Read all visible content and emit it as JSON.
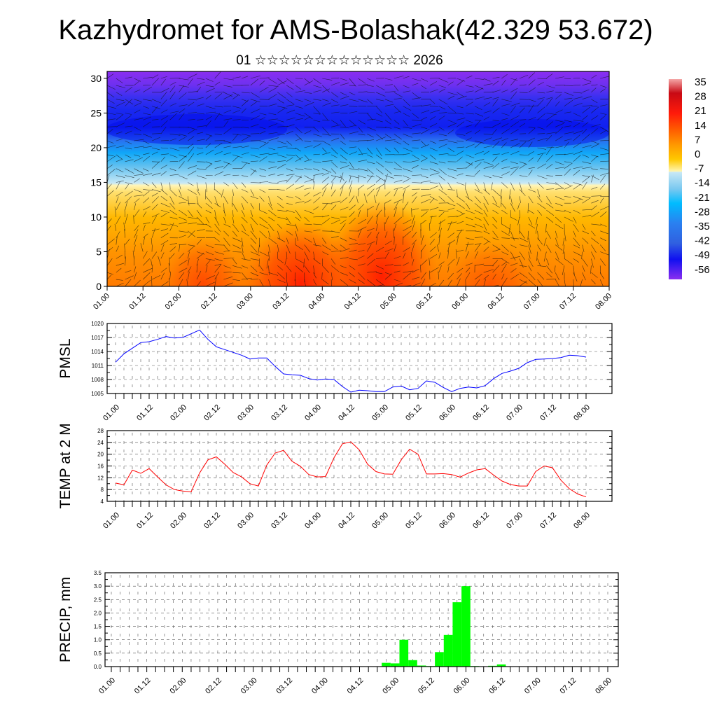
{
  "title": "Kazhydromet for AMS-Bolashak(42.329 53.672)",
  "subtitle": "01 ☆☆☆☆☆☆☆☆☆☆☆☆☆ 2026",
  "time_labels": [
    "01.00",
    "01.12",
    "02.00",
    "02.12",
    "03.00",
    "03.12",
    "04.00",
    "04.12",
    "05.00",
    "05.12",
    "06.00",
    "06.12",
    "07.00",
    "07.12",
    "08.00"
  ],
  "colorbar": {
    "labels": [
      "35",
      "28",
      "21",
      "14",
      "7",
      "0",
      "-7",
      "-14",
      "-21",
      "-28",
      "-35",
      "-42",
      "-49",
      "-56"
    ],
    "colors": [
      "#f4a6a6",
      "#c80a14",
      "#ff1a0a",
      "#ff5a00",
      "#ff9a00",
      "#ffc800",
      "#fff5b0",
      "#c8e8f5",
      "#78c8f0",
      "#00bcff",
      "#2a80f0",
      "#3060e0",
      "#1010f0",
      "#8a2ef0"
    ]
  },
  "chart_data": [
    {
      "type": "heatmap",
      "name": "vertical-profile",
      "title": "",
      "ylabel": "",
      "yticks": [
        "0",
        "5",
        "10",
        "15",
        "20",
        "25",
        "30"
      ],
      "ylim": [
        0,
        31
      ],
      "x_step_hours": 3,
      "description_levels_km": [
        0,
        5,
        10,
        15,
        20,
        25,
        30
      ],
      "approx_temperature_c": [
        14,
        7,
        -2,
        -12,
        -35,
        -49,
        -56
      ]
    },
    {
      "type": "line",
      "name": "pmsl",
      "ylabel": "PMSL",
      "ylim": [
        1005,
        1020
      ],
      "yticks": [
        "1005",
        "1008",
        "1011",
        "1014",
        "1017",
        "1020"
      ],
      "color": "#0000ff",
      "x_step_hours": 3,
      "values": [
        1011.7,
        1013.5,
        1014.7,
        1015.9,
        1016.1,
        1016.6,
        1017.2,
        1016.9,
        1017.0,
        1017.8,
        1018.6,
        1016.6,
        1015.0,
        1014.4,
        1013.8,
        1013.2,
        1012.4,
        1012.6,
        1012.6,
        1010.8,
        1009.2,
        1009.0,
        1008.9,
        1008.2,
        1007.9,
        1008.1,
        1008.0,
        1006.5,
        1005.3,
        1005.7,
        1005.6,
        1005.4,
        1005.4,
        1006.4,
        1006.6,
        1005.8,
        1006.1,
        1007.7,
        1007.4,
        1006.3,
        1005.4,
        1006.1,
        1006.4,
        1006.2,
        1006.7,
        1008.2,
        1009.3,
        1009.8,
        1010.4,
        1011.6,
        1012.3,
        1012.4,
        1012.5,
        1012.7,
        1013.2,
        1013.1,
        1012.8
      ]
    },
    {
      "type": "line",
      "name": "temp",
      "ylabel": "TEMP at 2 M",
      "ylim": [
        4,
        28
      ],
      "yticks": [
        "4",
        "8",
        "12",
        "16",
        "20",
        "24",
        "28"
      ],
      "color": "#ff0000",
      "x_step_hours": 3,
      "values": [
        10.2,
        9.6,
        14.6,
        13.5,
        15.1,
        12.3,
        9.6,
        8.0,
        7.5,
        7.2,
        13.6,
        18.1,
        19.1,
        16.6,
        13.8,
        12.3,
        10.0,
        9.2,
        16.3,
        20.4,
        21.3,
        17.6,
        15.9,
        13.1,
        12.3,
        12.4,
        18.8,
        23.5,
        24.2,
        21.5,
        16.6,
        14.1,
        13.3,
        13.2,
        18.1,
        21.7,
        20.0,
        13.3,
        13.3,
        13.4,
        13.1,
        12.2,
        13.6,
        14.7,
        15.1,
        12.9,
        10.9,
        9.7,
        9.2,
        9.2,
        14.1,
        16.0,
        15.4,
        11.2,
        8.3,
        6.5,
        5.5
      ]
    },
    {
      "type": "bar",
      "name": "precip",
      "ylabel": "PRECIP, mm",
      "ylim": [
        0,
        3.5
      ],
      "yticks": [
        "0.0",
        "0.5",
        "1.0",
        "1.5",
        "2.0",
        "2.5",
        "3.0",
        "3.5"
      ],
      "color": "#00ff00",
      "x_step_hours": 3,
      "values": [
        0,
        0,
        0,
        0,
        0,
        0,
        0,
        0,
        0,
        0,
        0,
        0,
        0,
        0,
        0,
        0,
        0,
        0,
        0,
        0,
        0,
        0,
        0,
        0,
        0,
        0,
        0,
        0,
        0,
        0,
        0,
        0.14,
        0.12,
        1.0,
        0.24,
        0.04,
        0.02,
        0.54,
        1.18,
        2.4,
        3.0,
        0.02,
        0,
        0.03,
        0.08,
        0,
        0,
        0,
        0,
        0,
        0,
        0,
        0,
        0,
        0,
        0,
        0
      ]
    }
  ]
}
